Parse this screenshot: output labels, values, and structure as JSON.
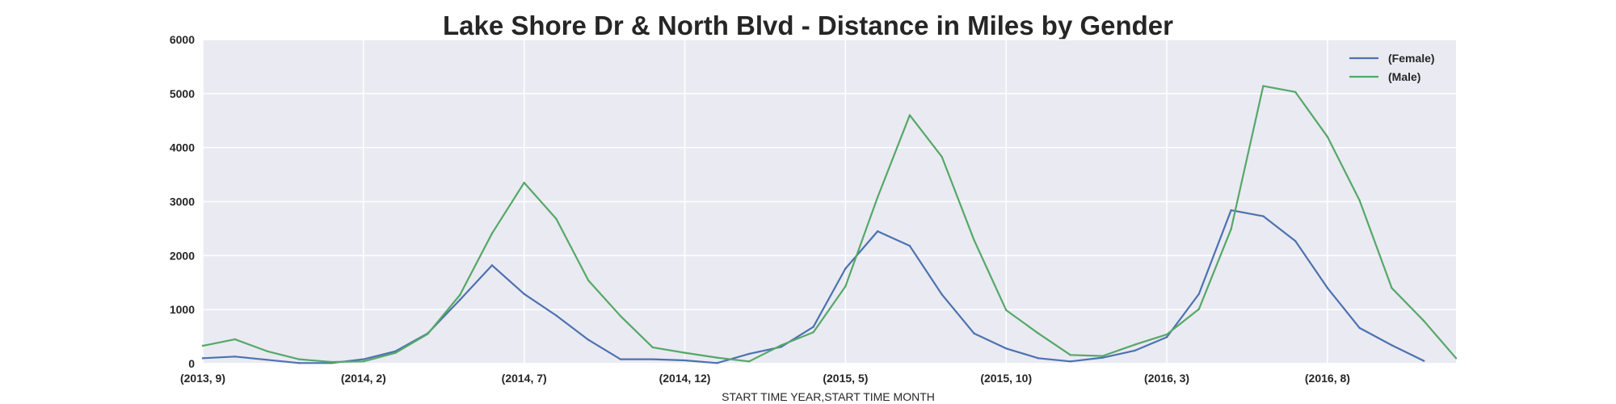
{
  "chart_data": {
    "type": "line",
    "title": "Lake Shore Dr & North Blvd - Distance in Miles by Gender",
    "xlabel": "START TIME YEAR,START TIME MONTH",
    "ylabel": "",
    "x": [
      "(2013, 9)",
      "(2013, 10)",
      "(2013, 11)",
      "(2013, 12)",
      "(2014, 1)",
      "(2014, 2)",
      "(2014, 3)",
      "(2014, 4)",
      "(2014, 5)",
      "(2014, 6)",
      "(2014, 7)",
      "(2014, 8)",
      "(2014, 9)",
      "(2014, 10)",
      "(2014, 11)",
      "(2014, 12)",
      "(2015, 1)",
      "(2015, 2)",
      "(2015, 3)",
      "(2015, 4)",
      "(2015, 5)",
      "(2015, 6)",
      "(2015, 7)",
      "(2015, 8)",
      "(2015, 9)",
      "(2015, 10)",
      "(2015, 11)",
      "(2015, 12)",
      "(2016, 1)",
      "(2016, 2)",
      "(2016, 3)",
      "(2016, 4)",
      "(2016, 5)",
      "(2016, 6)",
      "(2016, 7)",
      "(2016, 8)",
      "(2016, 9)",
      "(2016, 10)",
      "(2016, 11)",
      "(2016, 12)"
    ],
    "x_tick_labels": [
      "(2013, 9)",
      "(2014, 2)",
      "(2014, 7)",
      "(2014, 12)",
      "(2015, 5)",
      "(2015, 10)",
      "(2016, 3)",
      "(2016, 8)"
    ],
    "x_tick_index": [
      0,
      5,
      10,
      15,
      20,
      25,
      30,
      35
    ],
    "y_ticks": [
      "0",
      "1000",
      "2000",
      "3000",
      "4000",
      "5000",
      "6000"
    ],
    "ylim": [
      0,
      6000
    ],
    "grid": true,
    "legend_position": "top-right",
    "background_color": "#eaeaf2",
    "grid_color": "#ffffff",
    "series": [
      {
        "name": "(Female)",
        "color": "#4c72b0",
        "values": [
          100,
          130,
          70,
          10,
          10,
          80,
          230,
          560,
          1180,
          1820,
          1290,
          890,
          440,
          80,
          80,
          60,
          10,
          180,
          310,
          680,
          1760,
          2450,
          2180,
          1280,
          560,
          280,
          100,
          40,
          110,
          240,
          490,
          1290,
          2840,
          2730,
          2270,
          1400,
          660,
          340,
          50,
          null
        ]
      },
      {
        "name": "(Male)",
        "color": "#55a868",
        "values": [
          330,
          450,
          230,
          80,
          30,
          40,
          200,
          550,
          1270,
          2410,
          3350,
          2680,
          1540,
          880,
          300,
          200,
          110,
          40,
          340,
          580,
          1430,
          3080,
          4600,
          3830,
          2290,
          990,
          560,
          160,
          140,
          350,
          540,
          1010,
          2490,
          5140,
          5030,
          4200,
          3020,
          1400,
          790,
          100
        ]
      }
    ]
  }
}
